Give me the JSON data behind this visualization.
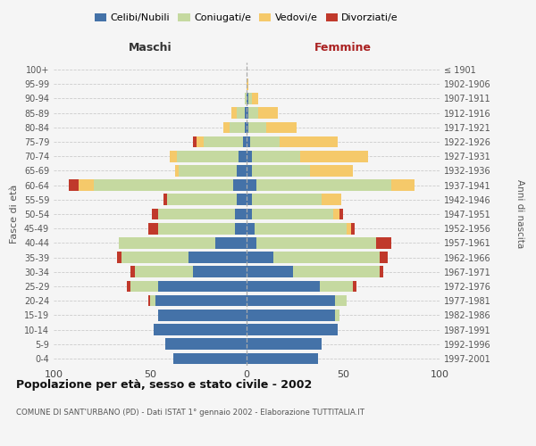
{
  "age_groups": [
    "0-4",
    "5-9",
    "10-14",
    "15-19",
    "20-24",
    "25-29",
    "30-34",
    "35-39",
    "40-44",
    "45-49",
    "50-54",
    "55-59",
    "60-64",
    "65-69",
    "70-74",
    "75-79",
    "80-84",
    "85-89",
    "90-94",
    "95-99",
    "100+"
  ],
  "birth_years": [
    "1997-2001",
    "1992-1996",
    "1987-1991",
    "1982-1986",
    "1977-1981",
    "1972-1976",
    "1967-1971",
    "1962-1966",
    "1957-1961",
    "1952-1956",
    "1947-1951",
    "1942-1946",
    "1937-1941",
    "1932-1936",
    "1927-1931",
    "1922-1926",
    "1917-1921",
    "1912-1916",
    "1907-1911",
    "1902-1906",
    "≤ 1901"
  ],
  "males": {
    "celibi": [
      38,
      42,
      48,
      46,
      47,
      46,
      28,
      30,
      16,
      6,
      6,
      5,
      7,
      5,
      4,
      2,
      1,
      1,
      0,
      0,
      0
    ],
    "coniugati": [
      0,
      0,
      0,
      0,
      3,
      14,
      30,
      35,
      50,
      40,
      40,
      36,
      72,
      30,
      32,
      20,
      8,
      4,
      1,
      0,
      0
    ],
    "vedovi": [
      0,
      0,
      0,
      0,
      0,
      0,
      0,
      0,
      0,
      0,
      0,
      0,
      8,
      2,
      4,
      4,
      3,
      3,
      0,
      0,
      0
    ],
    "divorziati": [
      0,
      0,
      0,
      0,
      1,
      2,
      2,
      2,
      0,
      5,
      3,
      2,
      5,
      0,
      0,
      2,
      0,
      0,
      0,
      0,
      0
    ]
  },
  "females": {
    "nubili": [
      37,
      39,
      47,
      46,
      46,
      38,
      24,
      14,
      5,
      4,
      3,
      3,
      5,
      3,
      3,
      2,
      1,
      1,
      1,
      0,
      0
    ],
    "coniugate": [
      0,
      0,
      0,
      2,
      6,
      17,
      45,
      55,
      62,
      48,
      42,
      36,
      70,
      30,
      25,
      15,
      9,
      5,
      2,
      0,
      0
    ],
    "vedove": [
      0,
      0,
      0,
      0,
      0,
      0,
      0,
      0,
      0,
      2,
      3,
      10,
      12,
      22,
      35,
      30,
      16,
      10,
      3,
      1,
      0
    ],
    "divorziate": [
      0,
      0,
      0,
      0,
      0,
      2,
      2,
      4,
      8,
      2,
      2,
      0,
      0,
      0,
      0,
      0,
      0,
      0,
      0,
      0,
      0
    ]
  },
  "colors": {
    "celibi": "#4472a8",
    "coniugati": "#c5d9a0",
    "vedovi": "#f5c96a",
    "divorziati": "#c0392b"
  },
  "xlim": 100,
  "title": "Popolazione per età, sesso e stato civile - 2002",
  "subtitle": "COMUNE DI SANT'URBANO (PD) - Dati ISTAT 1° gennaio 2002 - Elaborazione TUTTITALIA.IT",
  "ylabel_left": "Fasce di età",
  "ylabel_right": "Anni di nascita",
  "xlabel_left": "Maschi",
  "xlabel_right": "Femmine",
  "bg_color": "#f5f5f5",
  "grid_color": "#cccccc"
}
